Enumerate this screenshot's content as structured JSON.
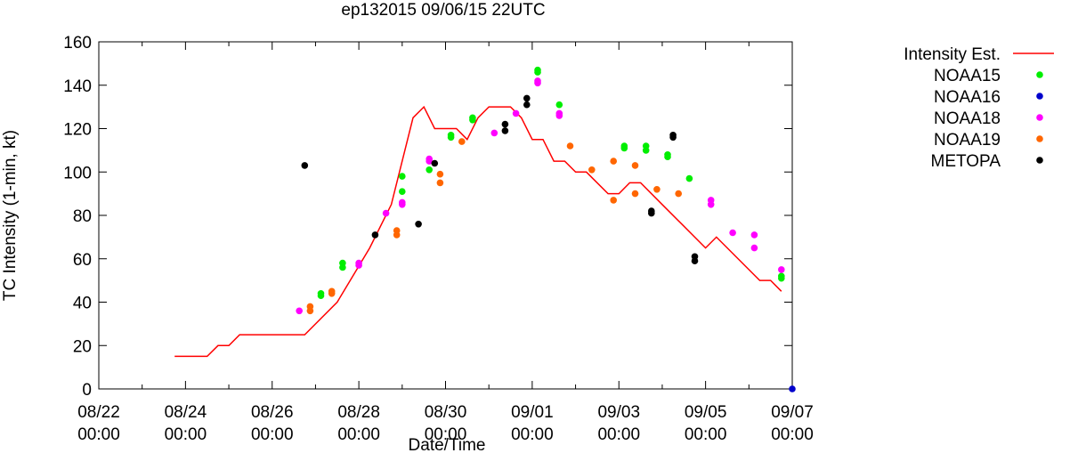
{
  "chart_data": {
    "type": "scatter",
    "title": "ep132015 09/06/15 22UTC",
    "xlabel": "Date/Time",
    "ylabel": "TC Intensity (1-min, kt)",
    "x_is_date": true,
    "x_unit": "days relative to 08/22 00:00",
    "xlim": [
      "08/22 00:00",
      "09/07 00:00"
    ],
    "ylim": [
      0,
      160
    ],
    "grid": false,
    "legend_position": "top-right outside",
    "x_ticks": [
      {
        "date": "08/22 00:00",
        "line1": "08/22",
        "line2": "00:00"
      },
      {
        "date": "08/24 00:00",
        "line1": "08/24",
        "line2": "00:00"
      },
      {
        "date": "08/26 00:00",
        "line1": "08/26",
        "line2": "00:00"
      },
      {
        "date": "08/28 00:00",
        "line1": "08/28",
        "line2": "00:00"
      },
      {
        "date": "08/30 00:00",
        "line1": "08/30",
        "line2": "00:00"
      },
      {
        "date": "09/01 00:00",
        "line1": "09/01",
        "line2": "00:00"
      },
      {
        "date": "09/03 00:00",
        "line1": "09/03",
        "line2": "00:00"
      },
      {
        "date": "09/05 00:00",
        "line1": "09/05",
        "line2": "00:00"
      },
      {
        "date": "09/07 00:00",
        "line1": "09/07",
        "line2": "00:00"
      }
    ],
    "y_ticks": [
      0,
      20,
      40,
      60,
      80,
      100,
      120,
      140,
      160
    ],
    "line_series": {
      "name": "Intensity Est.",
      "color": "#ff0000",
      "points": [
        [
          "08/23 18:00",
          15
        ],
        [
          "08/24 12:00",
          15
        ],
        [
          "08/24 18:00",
          20
        ],
        [
          "08/25 00:00",
          20
        ],
        [
          "08/25 06:00",
          25
        ],
        [
          "08/26 18:00",
          25
        ],
        [
          "08/27 12:00",
          40
        ],
        [
          "08/28 06:00",
          65
        ],
        [
          "08/28 18:00",
          85
        ],
        [
          "08/29 06:00",
          125
        ],
        [
          "08/29 12:00",
          130
        ],
        [
          "08/29 18:00",
          120
        ],
        [
          "08/30 06:00",
          120
        ],
        [
          "08/30 12:00",
          115
        ],
        [
          "08/30 18:00",
          125
        ],
        [
          "08/31 00:00",
          130
        ],
        [
          "08/31 12:00",
          130
        ],
        [
          "08/31 18:00",
          125
        ],
        [
          "09/01 00:00",
          115
        ],
        [
          "09/01 06:00",
          115
        ],
        [
          "09/01 12:00",
          105
        ],
        [
          "09/01 18:00",
          105
        ],
        [
          "09/02 00:00",
          100
        ],
        [
          "09/02 06:00",
          100
        ],
        [
          "09/02 18:00",
          90
        ],
        [
          "09/03 00:00",
          90
        ],
        [
          "09/03 06:00",
          95
        ],
        [
          "09/03 12:00",
          95
        ],
        [
          "09/04 00:00",
          85
        ],
        [
          "09/04 12:00",
          75
        ],
        [
          "09/05 00:00",
          65
        ],
        [
          "09/05 06:00",
          70
        ],
        [
          "09/06 06:00",
          50
        ],
        [
          "09/06 12:00",
          50
        ],
        [
          "09/06 18:00",
          45
        ]
      ]
    },
    "point_series": [
      {
        "name": "NOAA15",
        "color": "#00ee00",
        "points": [
          [
            "08/27 03:00",
            43
          ],
          [
            "08/27 03:00",
            44
          ],
          [
            "08/27 15:00",
            56
          ],
          [
            "08/27 15:00",
            58
          ],
          [
            "08/29 00:00",
            91
          ],
          [
            "08/29 00:00",
            98
          ],
          [
            "08/29 15:00",
            101
          ],
          [
            "08/30 03:00",
            116
          ],
          [
            "08/30 03:00",
            117
          ],
          [
            "08/30 15:00",
            124
          ],
          [
            "08/30 15:00",
            125
          ],
          [
            "09/01 03:00",
            146
          ],
          [
            "09/01 03:00",
            147
          ],
          [
            "09/01 15:00",
            131
          ],
          [
            "09/03 03:00",
            111
          ],
          [
            "09/03 03:00",
            112
          ],
          [
            "09/03 15:00",
            110
          ],
          [
            "09/03 15:00",
            112
          ],
          [
            "09/04 03:00",
            107
          ],
          [
            "09/04 03:00",
            108
          ],
          [
            "09/04 15:00",
            97
          ],
          [
            "09/06 18:00",
            51
          ],
          [
            "09/06 18:00",
            52
          ]
        ]
      },
      {
        "name": "NOAA16",
        "color": "#0000cc",
        "points": [
          [
            "09/07 00:00",
            0
          ]
        ]
      },
      {
        "name": "NOAA18",
        "color": "#ff00ff",
        "points": [
          [
            "08/26 15:00",
            36
          ],
          [
            "08/28 00:00",
            57
          ],
          [
            "08/28 00:00",
            58
          ],
          [
            "08/28 15:00",
            81
          ],
          [
            "08/29 00:00",
            85
          ],
          [
            "08/29 00:00",
            86
          ],
          [
            "08/29 15:00",
            105
          ],
          [
            "08/29 15:00",
            106
          ],
          [
            "08/31 03:00",
            118
          ],
          [
            "08/31 15:00",
            127
          ],
          [
            "09/01 03:00",
            141
          ],
          [
            "09/01 03:00",
            142
          ],
          [
            "09/01 15:00",
            126
          ],
          [
            "09/01 15:00",
            127
          ],
          [
            "09/05 03:00",
            85
          ],
          [
            "09/05 03:00",
            87
          ],
          [
            "09/05 15:00",
            72
          ],
          [
            "09/06 03:00",
            65
          ],
          [
            "09/06 03:00",
            71
          ],
          [
            "09/06 18:00",
            55
          ]
        ]
      },
      {
        "name": "NOAA19",
        "color": "#ff6600",
        "points": [
          [
            "08/26 21:00",
            36
          ],
          [
            "08/26 21:00",
            38
          ],
          [
            "08/27 09:00",
            44
          ],
          [
            "08/27 09:00",
            45
          ],
          [
            "08/28 21:00",
            71
          ],
          [
            "08/28 21:00",
            73
          ],
          [
            "08/29 21:00",
            95
          ],
          [
            "08/29 21:00",
            99
          ],
          [
            "08/30 09:00",
            114
          ],
          [
            "09/01 21:00",
            112
          ],
          [
            "09/02 09:00",
            101
          ],
          [
            "09/02 21:00",
            105
          ],
          [
            "09/02 21:00",
            87
          ],
          [
            "09/03 09:00",
            90
          ],
          [
            "09/03 09:00",
            103
          ],
          [
            "09/03 21:00",
            92
          ],
          [
            "09/04 09:00",
            90
          ]
        ]
      },
      {
        "name": "METOPA",
        "color": "#000000",
        "points": [
          [
            "08/26 18:00",
            103
          ],
          [
            "08/28 09:00",
            71
          ],
          [
            "08/29 09:00",
            76
          ],
          [
            "08/29 18:00",
            104
          ],
          [
            "08/31 09:00",
            119
          ],
          [
            "08/31 09:00",
            122
          ],
          [
            "08/31 21:00",
            131
          ],
          [
            "08/31 21:00",
            134
          ],
          [
            "09/03 18:00",
            81
          ],
          [
            "09/03 18:00",
            82
          ],
          [
            "09/04 06:00",
            116
          ],
          [
            "09/04 06:00",
            117
          ],
          [
            "09/04 18:00",
            59
          ],
          [
            "09/04 18:00",
            61
          ]
        ]
      }
    ]
  }
}
